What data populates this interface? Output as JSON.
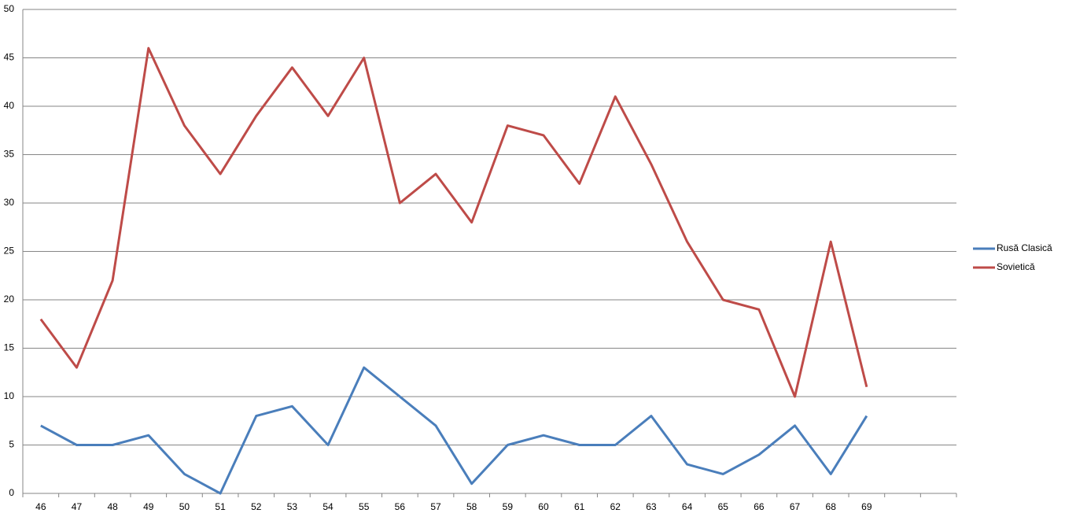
{
  "chart_data": {
    "type": "line",
    "categories": [
      "46",
      "47",
      "48",
      "49",
      "50",
      "51",
      "52",
      "53",
      "54",
      "55",
      "56",
      "57",
      "58",
      "59",
      "60",
      "61",
      "62",
      "63",
      "64",
      "65",
      "66",
      "67",
      "68",
      "69",
      null,
      null
    ],
    "series": [
      {
        "name": "Rusă Clasică",
        "color": "#4a7ebb",
        "values": [
          7,
          5,
          5,
          6,
          2,
          0,
          8,
          9,
          5,
          13,
          10,
          7,
          1,
          5,
          6,
          5,
          5,
          8,
          3,
          2,
          4,
          7,
          2,
          8,
          null,
          null
        ]
      },
      {
        "name": "Sovietică",
        "color": "#be4b48",
        "values": [
          18,
          13,
          22,
          46,
          38,
          33,
          39,
          44,
          39,
          45,
          30,
          33,
          28,
          38,
          37,
          32,
          41,
          34,
          26,
          20,
          19,
          10,
          26,
          11,
          null,
          null
        ]
      }
    ],
    "ylim": [
      0,
      50
    ],
    "yticks": [
      0,
      5,
      10,
      15,
      20,
      25,
      30,
      35,
      40,
      45,
      50
    ],
    "grid": true,
    "legend": "right"
  }
}
